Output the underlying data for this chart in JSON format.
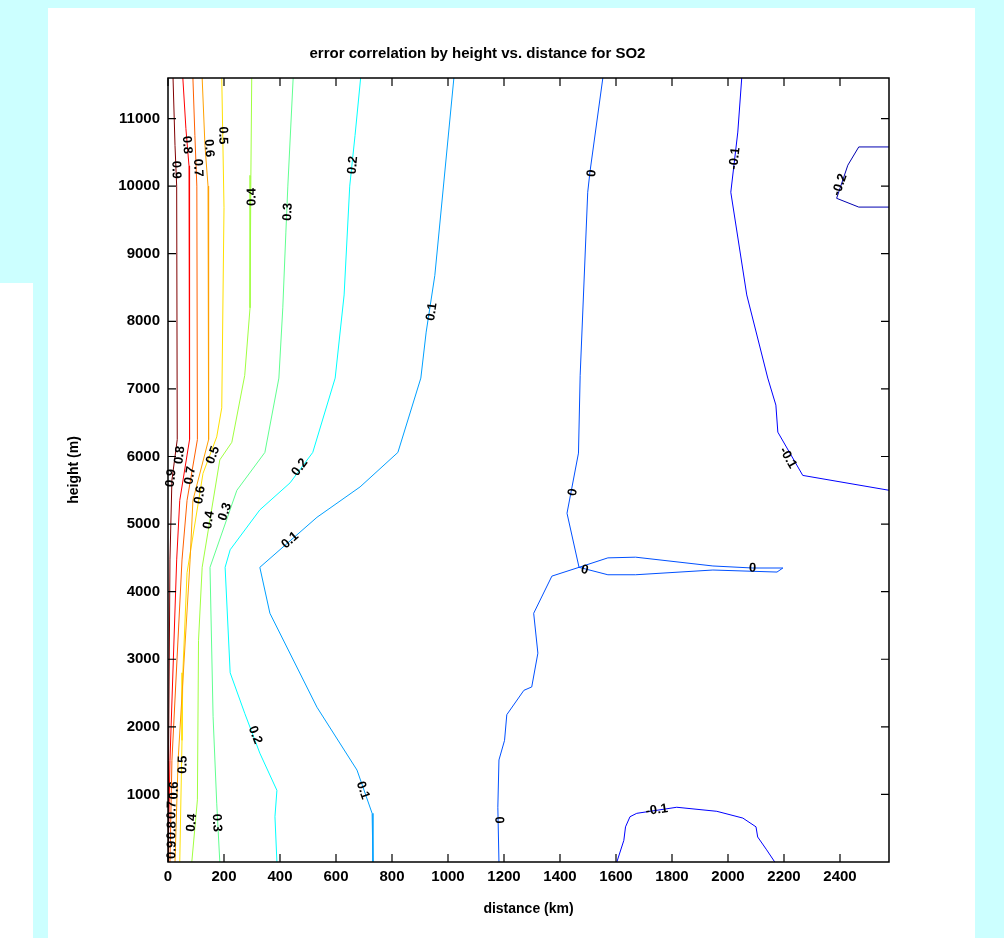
{
  "chart_data": {
    "type": "line",
    "title": "error correlation by height vs. distance for SO2",
    "xlabel": "distance (km)",
    "ylabel": "height (m)",
    "xlim": [
      0,
      2575
    ],
    "ylim": [
      0,
      11600
    ],
    "xticks": [
      0,
      200,
      400,
      600,
      800,
      1000,
      1200,
      1400,
      1600,
      1800,
      2000,
      2200,
      2400
    ],
    "yticks": [
      1000,
      2000,
      3000,
      4000,
      5000,
      6000,
      7000,
      8000,
      9000,
      10000,
      11000
    ],
    "grid": false,
    "marker": "none",
    "line_style": "solid",
    "series": [
      {
        "color": "#800000",
        "x": [
          18,
          25,
          31,
          33,
          14,
          7,
          2,
          0
        ],
        "values": [
          11600,
          10600,
          10000,
          6250,
          5650,
          4470,
          1500,
          0
        ]
      },
      {
        "color": "#ff0000",
        "x": [
          53,
          64,
          75,
          77,
          42,
          31,
          7,
          0
        ],
        "values": [
          11600,
          10850,
          10300,
          6250,
          5350,
          4470,
          1500,
          0
        ]
      },
      {
        "color": "#ff6000",
        "x": [
          89,
          96,
          103,
          105,
          68,
          50,
          14,
          7
        ],
        "values": [
          11600,
          10750,
          10000,
          6250,
          5350,
          4470,
          1500,
          0
        ]
      },
      {
        "color": "#ffa000",
        "x": [
          122,
          132,
          143,
          145,
          89,
          79,
          36,
          25
        ],
        "values": [
          11600,
          10600,
          10000,
          6250,
          5350,
          4470,
          1500,
          0
        ]
      },
      {
        "color": "#ffe000",
        "x": [
          192,
          200,
          192,
          174,
          125,
          68,
          53,
          50,
          42
        ],
        "values": [
          11600,
          9680,
          6720,
          6290,
          5750,
          4280,
          2800,
          1800,
          0
        ]
      },
      {
        "color": "#a0ff40",
        "x": [
          299,
          296,
          293,
          274,
          228,
          185,
          122,
          109,
          105,
          85
        ],
        "values": [
          11600,
          10160,
          8200,
          7200,
          6210,
          5950,
          4360,
          3280,
          920,
          0
        ]
      },
      {
        "color": "#60ff90",
        "x": [
          447,
          428,
          421,
          410,
          396,
          346,
          246,
          150,
          161,
          174,
          185
        ],
        "values": [
          11600,
          10000,
          9320,
          8200,
          7160,
          6060,
          5500,
          4360,
          2150,
          870,
          0
        ]
      },
      {
        "color": "#00ffff",
        "x": [
          688,
          668,
          649,
          629,
          597,
          517,
          436,
          328,
          222,
          204,
          222,
          274,
          328,
          389,
          382,
          389
        ],
        "values": [
          11600,
          10750,
          10000,
          8390,
          7160,
          6060,
          5610,
          5210,
          4620,
          4360,
          2800,
          2200,
          1610,
          1060,
          670,
          0
        ]
      },
      {
        "color": "#00a0ff",
        "x": [
          1021,
          953,
          922,
          903,
          821,
          686,
          532,
          328,
          364,
          532,
          675,
          729,
          732
        ],
        "values": [
          11600,
          8680,
          7840,
          7160,
          6060,
          5550,
          5100,
          4360,
          3680,
          2290,
          1360,
          720,
          0
        ]
      },
      {
        "color": "#0050ff",
        "x": [
          1553,
          1507,
          1499,
          1472,
          1466,
          1425,
          1468,
          1371,
          1306,
          1321,
          1299,
          1271,
          1210,
          1202,
          1182,
          1178,
          1182
        ],
        "values": [
          11600,
          10210,
          9910,
          7200,
          6050,
          5160,
          4360,
          4230,
          3680,
          3090,
          2590,
          2540,
          2180,
          1800,
          1510,
          810,
          0
        ]
      },
      {
        "color": "#0050ff",
        "x": [
          1468,
          1571,
          1670,
          1946,
          2088,
          2196
        ],
        "values": [
          4360,
          4500,
          4510,
          4380,
          4350,
          4350
        ]
      },
      {
        "color": "#0050ff",
        "x": [
          1468,
          1571,
          1670,
          1946,
          2175,
          2196
        ],
        "values": [
          4360,
          4250,
          4250,
          4320,
          4290,
          4350
        ]
      },
      {
        "color": "#0000ff",
        "x": [
          2049,
          2035,
          2010,
          2067,
          2142,
          2171,
          2178,
          2267,
          2575
        ],
        "values": [
          11600,
          10800,
          9910,
          8390,
          7160,
          6760,
          6360,
          5720,
          5500
        ]
      },
      {
        "color": "#0000ff",
        "x": [
          1603,
          1628,
          1634,
          1650,
          1674,
          1817,
          1960,
          2053,
          2100,
          2106,
          2138,
          2167
        ],
        "values": [
          0,
          320,
          520,
          670,
          720,
          810,
          750,
          650,
          520,
          370,
          180,
          0
        ]
      },
      {
        "color": "#0000b0",
        "x": [
          2575,
          2467,
          2428,
          2388,
          2467,
          2575
        ],
        "values": [
          10580,
          10580,
          10310,
          9820,
          9690,
          9690
        ]
      }
    ],
    "annotations": [
      {
        "text": "0.9",
        "x": 29,
        "y": 10240
      },
      {
        "text": "0.8",
        "x": 68,
        "y": 10610
      },
      {
        "text": "0.7",
        "x": 107,
        "y": 10270
      },
      {
        "text": "0.6",
        "x": 146,
        "y": 10560
      },
      {
        "text": "0.5",
        "x": 196,
        "y": 10750
      },
      {
        "text": "0.4",
        "x": 300,
        "y": 9840
      },
      {
        "text": "0.3",
        "x": 428,
        "y": 9620
      },
      {
        "text": "0.2",
        "x": 660,
        "y": 10310
      },
      {
        "text": "0.1",
        "x": 942,
        "y": 8140
      },
      {
        "text": "0",
        "x": 1514,
        "y": 10190
      },
      {
        "text": "-0.1",
        "x": 2024,
        "y": 10410
      },
      {
        "text": "-0.2",
        "x": 2399,
        "y": 10020
      },
      {
        "text": "-0.1",
        "x": 2214,
        "y": 5980
      },
      {
        "text": "0.9",
        "x": 11,
        "y": 5680
      },
      {
        "text": "0.8",
        "x": 42,
        "y": 6020
      },
      {
        "text": "0.7",
        "x": 79,
        "y": 5720
      },
      {
        "text": "0.6",
        "x": 114,
        "y": 5430
      },
      {
        "text": "0.5",
        "x": 161,
        "y": 6020
      },
      {
        "text": "0.4",
        "x": 146,
        "y": 5060
      },
      {
        "text": "0.3",
        "x": 204,
        "y": 5180
      },
      {
        "text": "0.2",
        "x": 471,
        "y": 5840
      },
      {
        "text": "0.1",
        "x": 436,
        "y": 4760
      },
      {
        "text": "0",
        "x": 1446,
        "y": 5470
      },
      {
        "text": "0",
        "x": 1488,
        "y": 4320
      },
      {
        "text": "0",
        "x": 2088,
        "y": 4350
      },
      {
        "text": "0.2",
        "x": 311,
        "y": 1880
      },
      {
        "text": "0.1",
        "x": 696,
        "y": 1060
      },
      {
        "text": "0",
        "x": 1182,
        "y": 620
      },
      {
        "text": "-0.1",
        "x": 1746,
        "y": 770
      },
      {
        "text": "0.5",
        "x": 53,
        "y": 1440
      },
      {
        "text": "0.6",
        "x": 22,
        "y": 1060
      },
      {
        "text": "0.7",
        "x": 14,
        "y": 770
      },
      {
        "text": "0.8",
        "x": 14,
        "y": 470
      },
      {
        "text": "0.9",
        "x": 14,
        "y": 180
      },
      {
        "text": "0.4",
        "x": 85,
        "y": 580
      },
      {
        "text": "0.3",
        "x": 174,
        "y": 580
      }
    ]
  }
}
